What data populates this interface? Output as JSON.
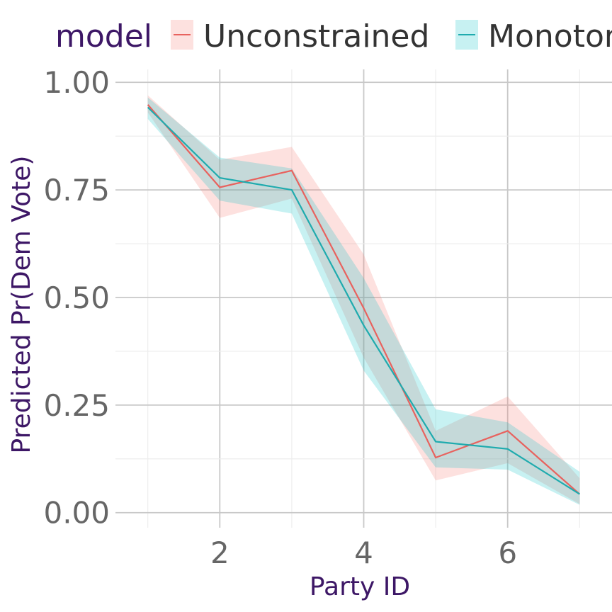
{
  "chart_data": {
    "type": "line",
    "xlabel": "Party ID",
    "ylabel": "Predicted Pr(Dem Vote)",
    "xlim": [
      0.55,
      7.45
    ],
    "ylim": [
      -0.035,
      1.03
    ],
    "x_ticks": [
      2,
      4,
      6
    ],
    "x_tick_labels": [
      "2",
      "4",
      "6"
    ],
    "y_ticks": [
      0,
      0.25,
      0.5,
      0.75,
      1
    ],
    "y_tick_labels": [
      "0.00",
      "0.25",
      "0.50",
      "0.75",
      "1.00"
    ],
    "grid": true,
    "legend": {
      "title": "model",
      "position": "top"
    },
    "x": [
      1,
      2,
      3,
      4,
      5,
      6,
      7
    ],
    "series": [
      {
        "name": "Unconstrained",
        "color": "#e8625e",
        "fill": "#f8766d",
        "values": [
          0.948,
          0.756,
          0.795,
          0.475,
          0.128,
          0.19,
          0.043
        ],
        "lower": [
          0.93,
          0.685,
          0.73,
          0.36,
          0.075,
          0.115,
          0.02
        ],
        "upper": [
          0.97,
          0.82,
          0.85,
          0.6,
          0.19,
          0.27,
          0.08
        ]
      },
      {
        "name": "Monotonic",
        "color": "#1fabae",
        "fill": "#00bfc4",
        "values": [
          0.942,
          0.778,
          0.75,
          0.435,
          0.165,
          0.148,
          0.043
        ],
        "lower": [
          0.915,
          0.725,
          0.695,
          0.33,
          0.105,
          0.1,
          0.018
        ],
        "upper": [
          0.965,
          0.825,
          0.8,
          0.545,
          0.24,
          0.21,
          0.095
        ]
      }
    ]
  }
}
